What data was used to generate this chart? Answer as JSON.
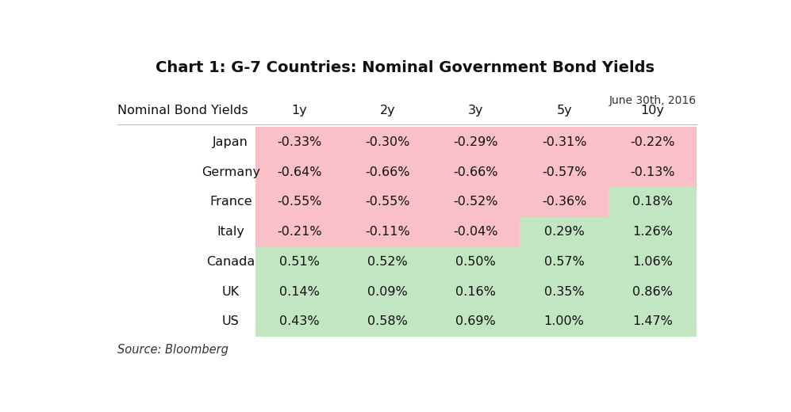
{
  "title": "Chart 1: G-7 Countries: Nominal Government Bond Yields",
  "date_label": "June 30th, 2016",
  "source": "Source: Bloomberg",
  "col_header_label": "Nominal Bond Yields",
  "columns": [
    "1y",
    "2y",
    "3y",
    "5y",
    "10y"
  ],
  "rows": [
    "Japan",
    "Germany",
    "France",
    "Italy",
    "Canada",
    "UK",
    "US"
  ],
  "values": [
    [
      "-0.33%",
      "-0.30%",
      "-0.29%",
      "-0.31%",
      "-0.22%"
    ],
    [
      "-0.64%",
      "-0.66%",
      "-0.66%",
      "-0.57%",
      "-0.13%"
    ],
    [
      "-0.55%",
      "-0.55%",
      "-0.52%",
      "-0.36%",
      "0.18%"
    ],
    [
      "-0.21%",
      "-0.11%",
      "-0.04%",
      "0.29%",
      "1.26%"
    ],
    [
      "0.51%",
      "0.52%",
      "0.50%",
      "0.57%",
      "1.06%"
    ],
    [
      "0.14%",
      "0.09%",
      "0.16%",
      "0.35%",
      "0.86%"
    ],
    [
      "0.43%",
      "0.58%",
      "0.69%",
      "1.00%",
      "1.47%"
    ]
  ],
  "cell_colors": [
    [
      "pink",
      "pink",
      "pink",
      "pink",
      "pink"
    ],
    [
      "pink",
      "pink",
      "pink",
      "pink",
      "pink"
    ],
    [
      "pink",
      "pink",
      "pink",
      "pink",
      "green"
    ],
    [
      "pink",
      "pink",
      "pink",
      "green",
      "green"
    ],
    [
      "green",
      "green",
      "green",
      "green",
      "green"
    ],
    [
      "green",
      "green",
      "green",
      "green",
      "green"
    ],
    [
      "green",
      "green",
      "green",
      "green",
      "green"
    ]
  ],
  "pink_color": "#F9C0C8",
  "green_color": "#C2E5C2",
  "bg_color": "#FFFFFF",
  "title_fontsize": 14,
  "header_fontsize": 11.5,
  "cell_fontsize": 11.5,
  "source_fontsize": 10.5
}
